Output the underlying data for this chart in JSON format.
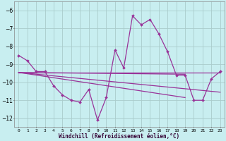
{
  "xlabel": "Windchill (Refroidissement éolien,°C)",
  "background_color": "#c8eef0",
  "grid_color": "#aacccc",
  "line_color": "#993399",
  "xlim": [
    -0.5,
    23.5
  ],
  "ylim": [
    -12.5,
    -5.5
  ],
  "yticks": [
    -12,
    -11,
    -10,
    -9,
    -8,
    -7,
    -6
  ],
  "xticks": [
    0,
    1,
    2,
    3,
    4,
    5,
    6,
    7,
    8,
    9,
    10,
    11,
    12,
    13,
    14,
    15,
    16,
    17,
    18,
    19,
    20,
    21,
    22,
    23
  ],
  "hours": [
    0,
    1,
    2,
    3,
    4,
    5,
    6,
    7,
    8,
    9,
    10,
    11,
    12,
    13,
    14,
    15,
    16,
    17,
    18,
    19,
    20,
    21,
    22,
    23
  ],
  "windchill": [
    -8.5,
    -8.8,
    -9.4,
    -9.4,
    -10.2,
    -10.7,
    -11.0,
    -11.1,
    -10.4,
    -12.1,
    -10.85,
    -8.2,
    -9.2,
    -6.3,
    -6.8,
    -6.5,
    -7.3,
    -8.3,
    -9.6,
    -9.6,
    -11.0,
    -11.0,
    -9.8,
    -9.4
  ],
  "line1_x": [
    0,
    23
  ],
  "line1_y": [
    -9.45,
    -9.45
  ],
  "line2_x": [
    0,
    19
  ],
  "line2_y": [
    -9.45,
    -9.55
  ],
  "line3_x": [
    0,
    23
  ],
  "line3_y": [
    -9.45,
    -10.55
  ],
  "line4_x": [
    0,
    19
  ],
  "line4_y": [
    -9.45,
    -10.85
  ]
}
